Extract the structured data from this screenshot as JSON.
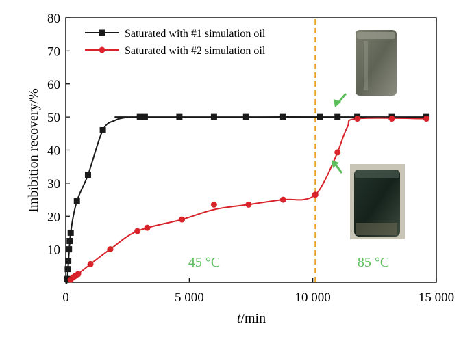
{
  "chart_data": {
    "type": "line",
    "xlabel_italic": "t",
    "xlabel_unit": "/min",
    "ylabel": "Imbibition recovery/%",
    "xlim": [
      0,
      15000
    ],
    "ylim": [
      0,
      80
    ],
    "x_ticks": [
      0,
      5000,
      10000,
      15000
    ],
    "x_tick_labels": [
      "0",
      "5 000",
      "10 000",
      "15 000"
    ],
    "y_ticks": [
      10,
      20,
      30,
      40,
      50,
      60,
      70,
      80
    ],
    "y_tick_labels": [
      "10",
      "20",
      "30",
      "40",
      "50",
      "60",
      "70",
      "80"
    ],
    "legend_position": "top-left",
    "series": [
      {
        "name": "Saturated with #1 simulation oil",
        "color": "#1a1a1a",
        "marker": "square",
        "points": [
          [
            60,
            1
          ],
          [
            80,
            4
          ],
          [
            100,
            6.5
          ],
          [
            130,
            10
          ],
          [
            160,
            12.5
          ],
          [
            200,
            15
          ],
          [
            450,
            24.5
          ],
          [
            900,
            32.5
          ],
          [
            1500,
            46
          ],
          [
            3000,
            50
          ],
          [
            3200,
            50
          ],
          [
            4600,
            50
          ],
          [
            6000,
            50
          ],
          [
            7300,
            50
          ],
          [
            8800,
            50
          ],
          [
            10300,
            50
          ],
          [
            11000,
            50
          ],
          [
            11800,
            50
          ],
          [
            13200,
            50
          ],
          [
            14600,
            50
          ]
        ],
        "curve": [
          [
            0,
            0
          ],
          [
            60,
            1
          ],
          [
            200,
            15
          ],
          [
            450,
            24.5
          ],
          [
            900,
            32.5
          ],
          [
            1500,
            46
          ],
          [
            2000,
            49
          ],
          [
            2500,
            49.9
          ],
          [
            3000,
            50
          ],
          [
            14600,
            50
          ]
        ]
      },
      {
        "name": "Saturated with #2 simulation oil",
        "color": "#d8232a",
        "marker": "circle",
        "points": [
          [
            200,
            0.8
          ],
          [
            300,
            1.5
          ],
          [
            400,
            2
          ],
          [
            500,
            2.5
          ],
          [
            1000,
            5.5
          ],
          [
            1800,
            10
          ],
          [
            2900,
            15.5
          ],
          [
            3300,
            16.5
          ],
          [
            4700,
            19
          ],
          [
            6000,
            23.5
          ],
          [
            7400,
            23.5
          ],
          [
            8800,
            25
          ],
          [
            10100,
            26.5
          ],
          [
            11000,
            39.3
          ],
          [
            11800,
            49.5
          ],
          [
            13200,
            49.5
          ],
          [
            14600,
            49.5
          ]
        ],
        "curve": [
          [
            200,
            0.8
          ],
          [
            500,
            2.5
          ],
          [
            1000,
            5.5
          ],
          [
            1800,
            10
          ],
          [
            2900,
            15.5
          ],
          [
            4700,
            19
          ],
          [
            6000,
            22
          ],
          [
            7400,
            23.5
          ],
          [
            8800,
            25
          ],
          [
            9600,
            25
          ],
          [
            10100,
            26.5
          ],
          [
            10500,
            31
          ],
          [
            11000,
            39.3
          ],
          [
            11400,
            47
          ],
          [
            11800,
            49.5
          ],
          [
            14600,
            49.5
          ]
        ]
      }
    ],
    "divider_x": 10100,
    "divider_color": "#e8a020",
    "annotations": [
      {
        "text": "45 °C",
        "x": 5000,
        "y": 7
      },
      {
        "text": "85 °C",
        "x": 12500,
        "y": 7
      }
    ]
  },
  "photos": [
    {
      "icon": "rock-sample-photo-upper"
    },
    {
      "icon": "rock-sample-photo-lower"
    }
  ]
}
